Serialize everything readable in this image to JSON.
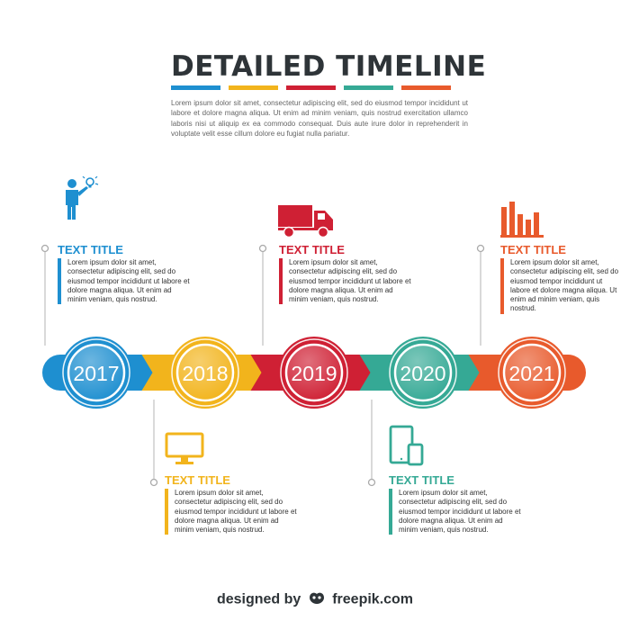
{
  "header": {
    "title": "DETAILED TIMELINE",
    "color_bars": [
      "#1e8fd0",
      "#f2b41c",
      "#cf2034",
      "#35a995",
      "#e85a2c"
    ],
    "intro": "Lorem ipsum dolor sit amet, consectetur adipiscing elit, sed do eiusmod tempor incididunt ut labore et dolore magna aliqua. Ut enim ad minim veniam, quis nostrud exercitation ullamco laboris nisi ut aliquip ex ea commodo consequat. Duis aute irure dolor in reprehenderit in voluptate velit esse cillum dolore eu fugiat nulla pariatur."
  },
  "timeline": {
    "milestones": [
      {
        "year": "2017",
        "color": "#1e8fd0",
        "title": "TEXT TITLE",
        "body": "Lorem ipsum dolor sit amet, consectetur adipiscing elit, sed do eiusmod tempor incididunt ut labore et dolore magna aliqua. Ut enim ad minim veniam, quis nostrud.",
        "icon": "person-lightbulb-icon",
        "position": "above"
      },
      {
        "year": "2018",
        "color": "#f2b41c",
        "title": "TEXT TITLE",
        "body": "Lorem ipsum dolor sit amet, consectetur adipiscing elit, sed do eiusmod tempor incididunt ut labore et dolore magna aliqua. Ut enim ad minim veniam, quis nostrud.",
        "icon": "computer-monitor-icon",
        "position": "below"
      },
      {
        "year": "2019",
        "color": "#cf2034",
        "title": "TEXT TITLE",
        "body": "Lorem ipsum dolor sit amet, consectetur adipiscing elit, sed do eiusmod tempor incididunt ut labore et dolore magna aliqua. Ut enim ad minim veniam, quis nostrud.",
        "icon": "delivery-truck-icon",
        "position": "above"
      },
      {
        "year": "2020",
        "color": "#35a995",
        "title": "TEXT TITLE",
        "body": "Lorem ipsum dolor sit amet, consectetur adipiscing elit, sed do eiusmod tempor incididunt ut labore et dolore magna aliqua. Ut enim ad minim veniam, quis nostrud.",
        "icon": "tablet-phone-icon",
        "position": "below"
      },
      {
        "year": "2021",
        "color": "#e85a2c",
        "title": "TEXT TITLE",
        "body": "Lorem ipsum dolor sit amet, consectetur adipiscing elit, sed do eiusmod tempor incididunt ut labore et dolore magna aliqua. Ut enim ad minim veniam, quis nostrud.",
        "icon": "bar-chart-icon",
        "position": "above"
      }
    ]
  },
  "footer": {
    "prefix": "designed by",
    "brand": "freepik.com"
  }
}
